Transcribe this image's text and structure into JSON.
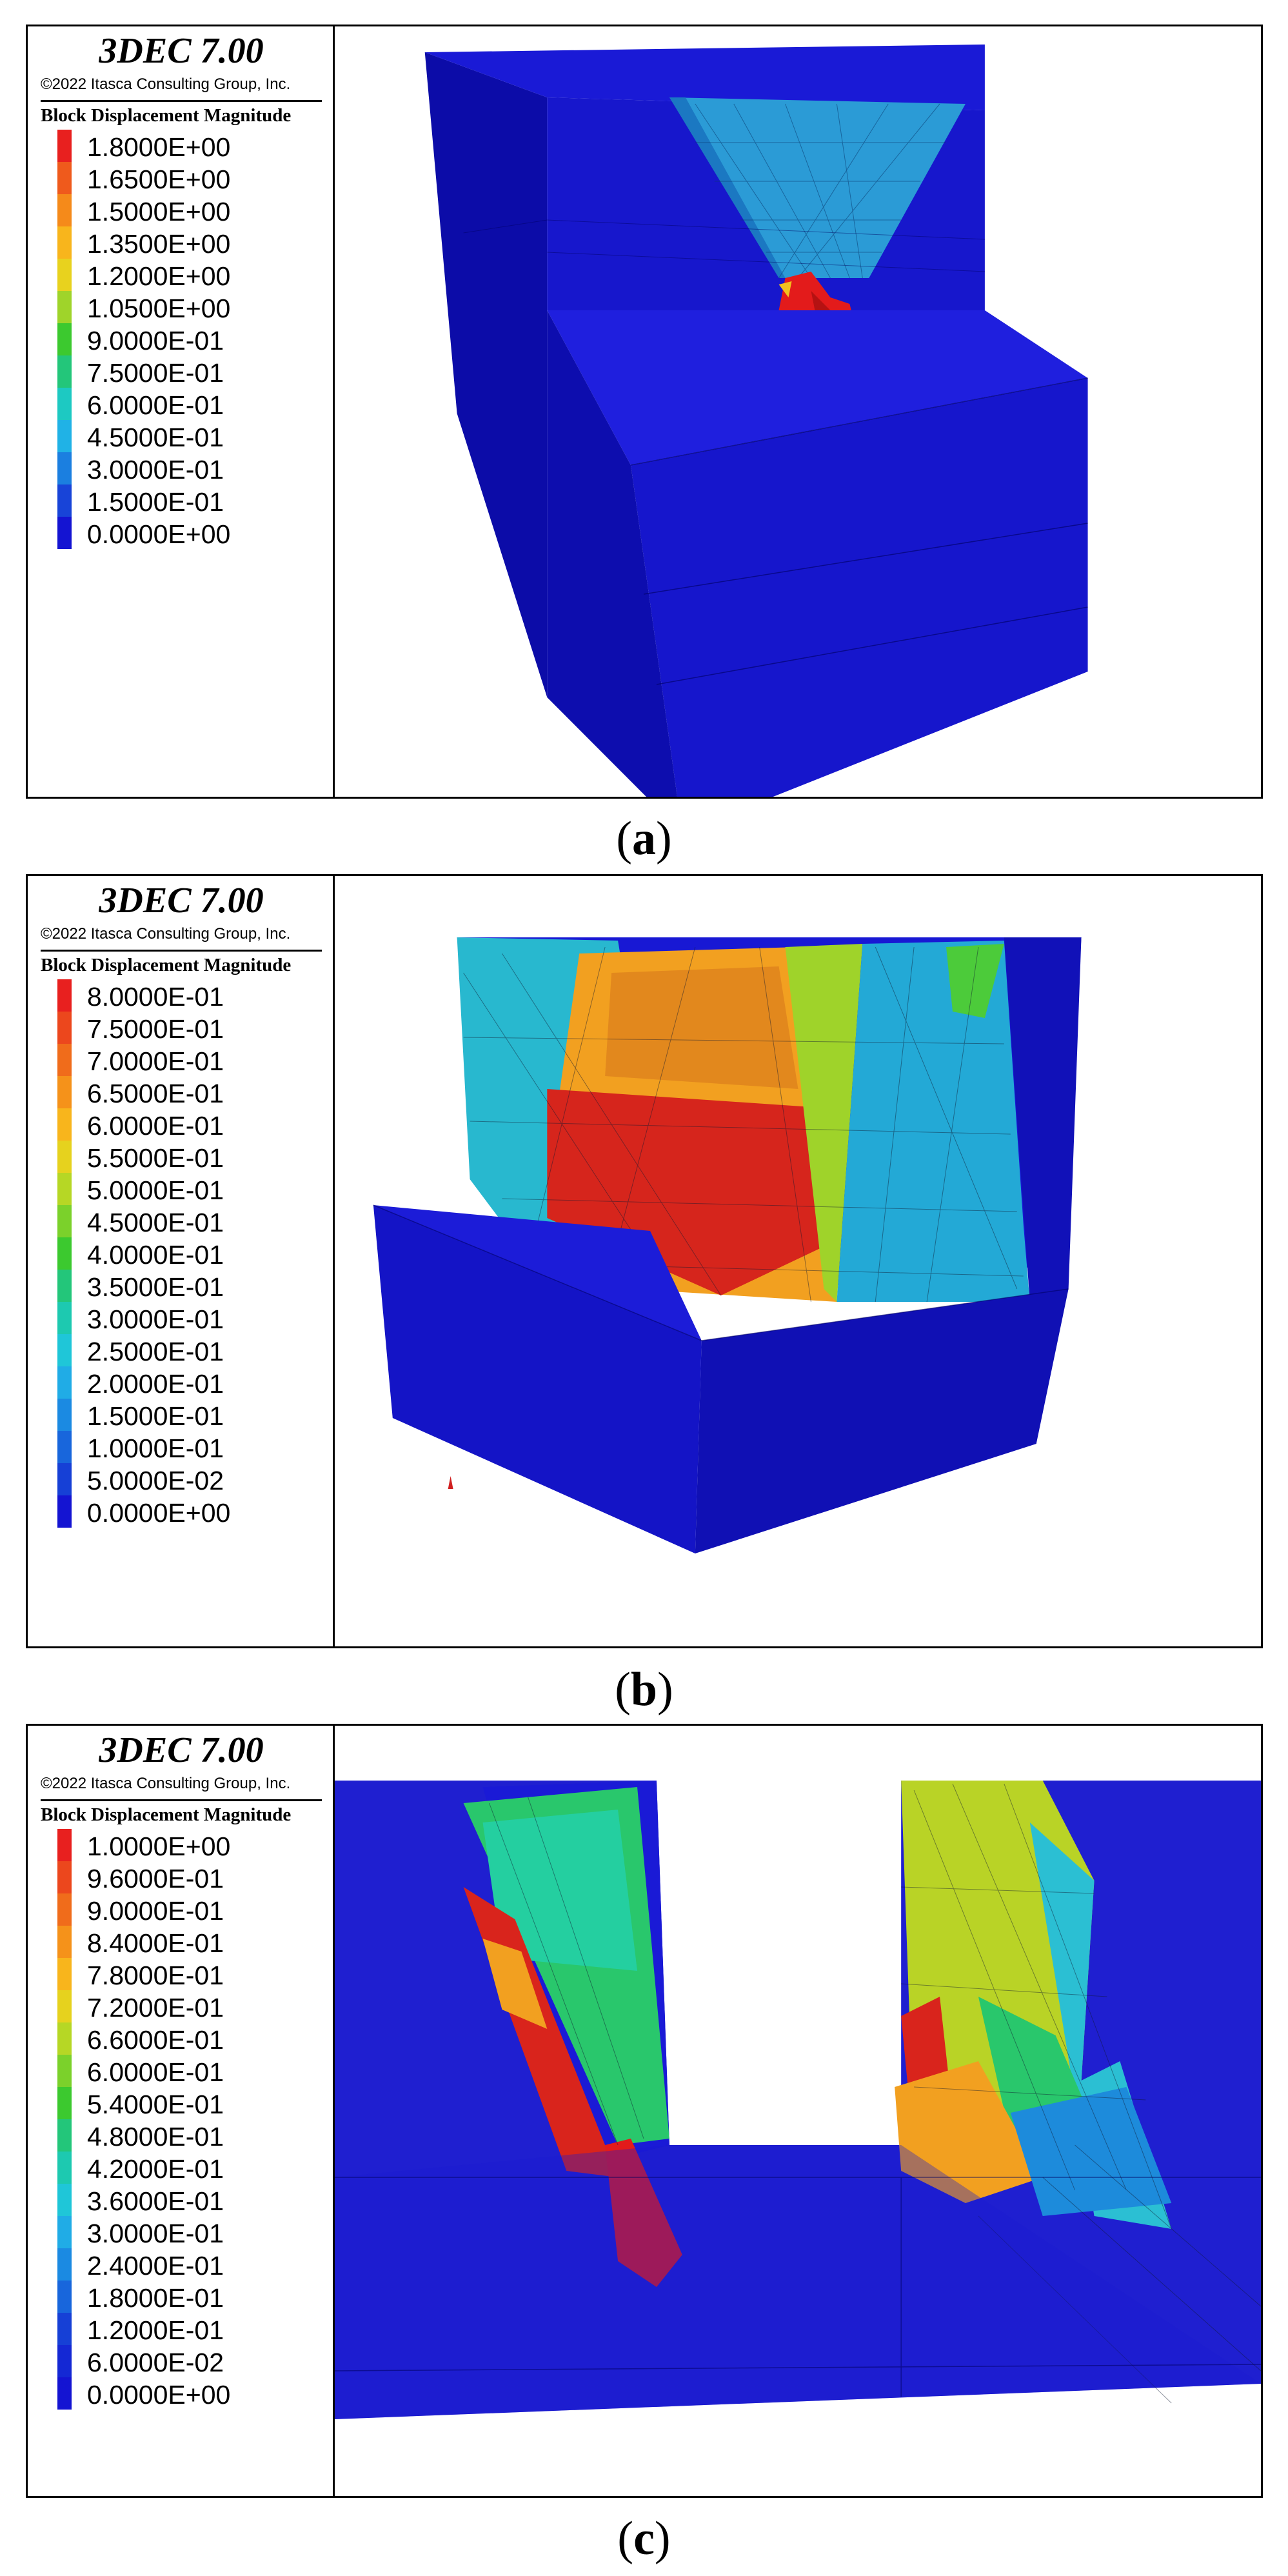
{
  "panels": [
    {
      "caption_letter": "a",
      "title": "3DEC 7.00",
      "copyright": "©2022 Itasca Consulting Group, Inc.",
      "legend_header": "Block  Displacement Magnitude",
      "legend": [
        {
          "label": "1.8000E+00",
          "color": "#e8201f"
        },
        {
          "label": "1.6500E+00",
          "color": "#ef5a1c"
        },
        {
          "label": "1.5000E+00",
          "color": "#f58a1a"
        },
        {
          "label": "1.3500E+00",
          "color": "#f8b51c"
        },
        {
          "label": "1.2000E+00",
          "color": "#e8d21e"
        },
        {
          "label": "1.0500E+00",
          "color": "#9fd42a"
        },
        {
          "label": "9.0000E-01",
          "color": "#3cc92f"
        },
        {
          "label": "7.5000E-01",
          "color": "#23c67a"
        },
        {
          "label": "6.0000E-01",
          "color": "#1dc9c2"
        },
        {
          "label": "4.5000E-01",
          "color": "#20b2e6"
        },
        {
          "label": "3.0000E-01",
          "color": "#1b7fe0"
        },
        {
          "label": "1.5000E-01",
          "color": "#1844d8"
        },
        {
          "label": "0.0000E+00",
          "color": "#1414d2"
        }
      ]
    },
    {
      "caption_letter": "b",
      "title": "3DEC 7.00",
      "copyright": "©2022 Itasca Consulting Group, Inc.",
      "legend_header": "Block  Displacement Magnitude",
      "legend": [
        {
          "label": "8.0000E-01",
          "color": "#e8201f"
        },
        {
          "label": "7.5000E-01",
          "color": "#ec471d"
        },
        {
          "label": "7.0000E-01",
          "color": "#f06c1b"
        },
        {
          "label": "6.5000E-01",
          "color": "#f5921a"
        },
        {
          "label": "6.0000E-01",
          "color": "#f8b51c"
        },
        {
          "label": "5.5000E-01",
          "color": "#e6d21e"
        },
        {
          "label": "5.0000E-01",
          "color": "#b6d725"
        },
        {
          "label": "4.5000E-01",
          "color": "#7bd12b"
        },
        {
          "label": "4.0000E-01",
          "color": "#3cc92f"
        },
        {
          "label": "3.5000E-01",
          "color": "#23c67a"
        },
        {
          "label": "3.0000E-01",
          "color": "#1dc9b0"
        },
        {
          "label": "2.5000E-01",
          "color": "#1fc6d8"
        },
        {
          "label": "2.0000E-01",
          "color": "#20ace6"
        },
        {
          "label": "1.5000E-01",
          "color": "#1b8ae2"
        },
        {
          "label": "1.0000E-01",
          "color": "#1866dc"
        },
        {
          "label": "5.0000E-02",
          "color": "#1640d6"
        },
        {
          "label": "0.0000E+00",
          "color": "#1414d2"
        }
      ]
    },
    {
      "caption_letter": "c",
      "title": "3DEC 7.00",
      "copyright": "©2022 Itasca Consulting Group, Inc.",
      "legend_header": "Block  Displacement Magnitude",
      "legend": [
        {
          "label": "1.0000E+00",
          "color": "#e8201f"
        },
        {
          "label": "9.6000E-01",
          "color": "#ec471d"
        },
        {
          "label": "9.0000E-01",
          "color": "#f06c1b"
        },
        {
          "label": "8.4000E-01",
          "color": "#f5921a"
        },
        {
          "label": "7.8000E-01",
          "color": "#f8b51c"
        },
        {
          "label": "7.2000E-01",
          "color": "#e6d21e"
        },
        {
          "label": "6.6000E-01",
          "color": "#b6d725"
        },
        {
          "label": "6.0000E-01",
          "color": "#7bd12b"
        },
        {
          "label": "5.4000E-01",
          "color": "#3cc92f"
        },
        {
          "label": "4.8000E-01",
          "color": "#23c67a"
        },
        {
          "label": "4.2000E-01",
          "color": "#1dc9b0"
        },
        {
          "label": "3.6000E-01",
          "color": "#1fc6d8"
        },
        {
          "label": "3.0000E-01",
          "color": "#20ace6"
        },
        {
          "label": "2.4000E-01",
          "color": "#1b8ae2"
        },
        {
          "label": "1.8000E-01",
          "color": "#1866dc"
        },
        {
          "label": "1.2000E-01",
          "color": "#1640d6"
        },
        {
          "label": "6.0000E-02",
          "color": "#1428d4"
        },
        {
          "label": "0.0000E+00",
          "color": "#1414d2"
        }
      ]
    }
  ]
}
